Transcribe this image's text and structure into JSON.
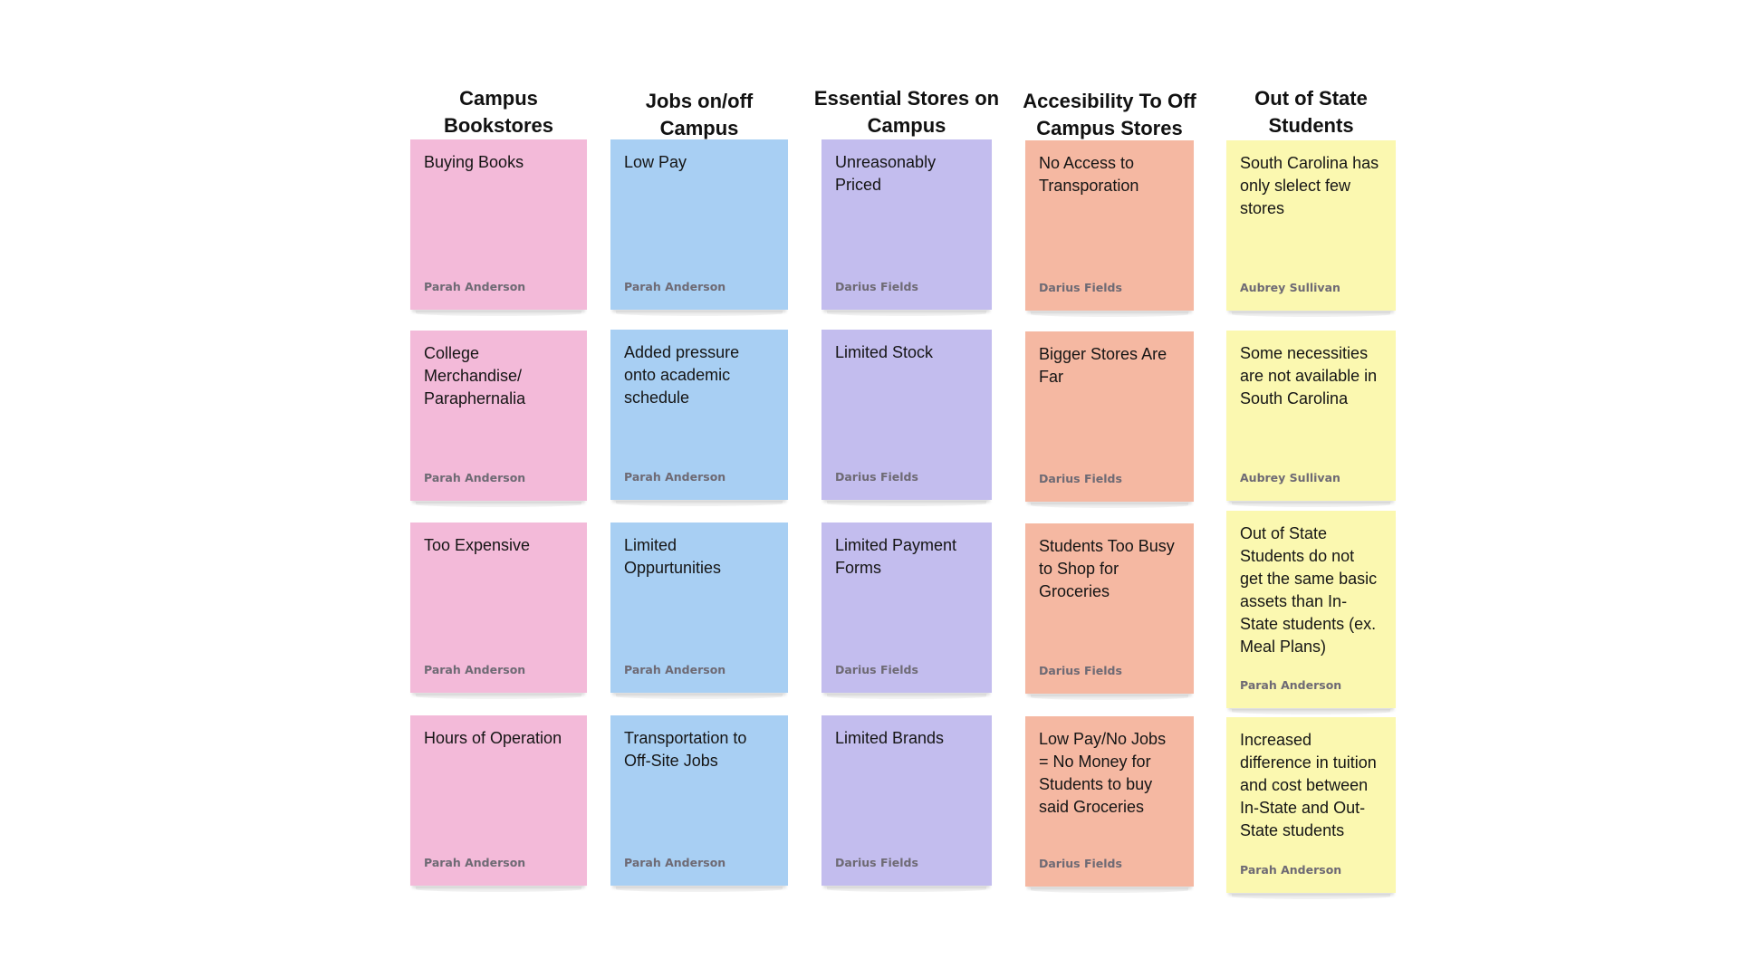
{
  "board": {
    "colors": {
      "pink": "#f3bad9",
      "blue": "#a8cff3",
      "purple": "#c3bdee",
      "salmon": "#f5b8a2",
      "yellow": "#fbf8b0"
    },
    "columns": [
      {
        "title": "Campus\nBookstores",
        "color": "#f3bad9",
        "notes": [
          {
            "text": "Buying Books",
            "author": "Parah Anderson"
          },
          {
            "text": "College\nMerchandise/\nParaphernalia",
            "author": "Parah Anderson"
          },
          {
            "text": "Too Expensive",
            "author": "Parah Anderson"
          },
          {
            "text": "Hours of Operation",
            "author": "Parah Anderson"
          }
        ]
      },
      {
        "title": "Jobs on/off\nCampus",
        "color": "#a8cff3",
        "notes": [
          {
            "text": "Low Pay",
            "author": "Parah Anderson"
          },
          {
            "text": "Added pressure\nonto academic\nschedule",
            "author": "Parah Anderson"
          },
          {
            "text": "Limited\nOppurtunities",
            "author": "Parah Anderson"
          },
          {
            "text": "Transportation to\nOff-Site Jobs",
            "author": "Parah Anderson"
          }
        ]
      },
      {
        "title": "Essential Stores on\nCampus",
        "color": "#c3bdee",
        "notes": [
          {
            "text": "Unreasonably\nPriced",
            "author": "Darius Fields"
          },
          {
            "text": "Limited Stock",
            "author": "Darius Fields"
          },
          {
            "text": "Limited Payment\nForms",
            "author": "Darius Fields"
          },
          {
            "text": "Limited Brands",
            "author": "Darius Fields"
          }
        ]
      },
      {
        "title": "Accesibility To Off\nCampus Stores",
        "color": "#f5b8a2",
        "notes": [
          {
            "text": "No Access to\nTransporation",
            "author": "Darius Fields"
          },
          {
            "text": "Bigger Stores Are\nFar",
            "author": "Darius Fields"
          },
          {
            "text": "Students Too Busy\nto Shop for\nGroceries",
            "author": "Darius Fields"
          },
          {
            "text": "Low Pay/No Jobs\n= No Money for\nStudents to buy\nsaid Groceries",
            "author": "Darius Fields"
          }
        ]
      },
      {
        "title": "Out of State\nStudents",
        "color": "#fbf8b0",
        "notes": [
          {
            "text": "South Carolina has\nonly slelect few\nstores",
            "author": "Aubrey Sullivan"
          },
          {
            "text": "Some necessities\nare not available in\nSouth Carolina",
            "author": "Aubrey Sullivan"
          },
          {
            "text": "Out of State\nStudents do not\nget the same basic\nassets than In-\nState students (ex.\nMeal Plans)",
            "author": "Parah Anderson"
          },
          {
            "text": "Increased\ndifference in tuition\nand cost between\nIn-State and Out-\nState students",
            "author": "Parah Anderson"
          }
        ]
      }
    ]
  }
}
